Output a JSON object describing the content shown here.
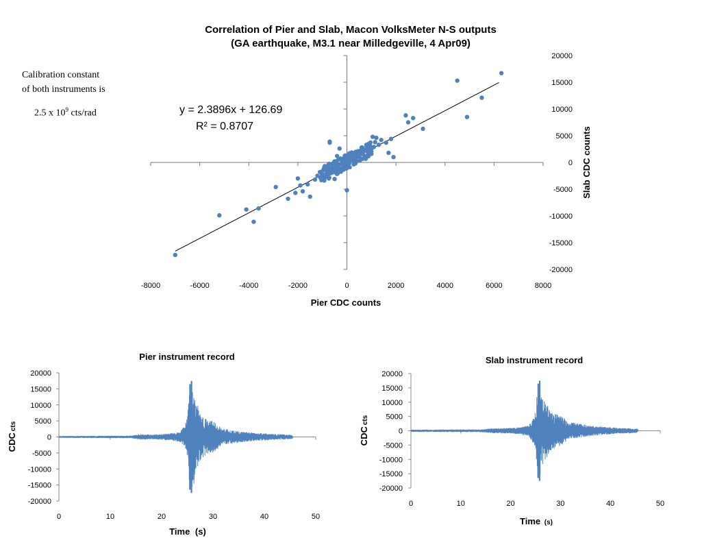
{
  "annotation": {
    "line1": "Calibration constant",
    "line2": "of both instruments is",
    "calib_prefix": "2.5 x 10",
    "calib_exp": "9",
    "calib_suffix": "cts/rad"
  },
  "chart_data": [
    {
      "type": "scatter",
      "title_line1": "Correlation of Pier and Slab, Macon VolksMeter N-S outputs",
      "title_line2": "(GA earthquake, M3.1 near Milledgeville, 4 Apr09)",
      "xlabel": "Pier CDC counts",
      "ylabel": "Slab CDC counts",
      "xlim": [
        -8000,
        8000
      ],
      "ylim": [
        -20000,
        20000
      ],
      "xticks": [
        -8000,
        -6000,
        -4000,
        -2000,
        0,
        2000,
        4000,
        6000,
        8000
      ],
      "yticks": [
        -20000,
        -15000,
        -10000,
        -5000,
        0,
        5000,
        10000,
        15000,
        20000
      ],
      "point_color": "#4f81bd",
      "trendline": {
        "equation": "y = 2.3896x + 126.69",
        "r_squared": "R² = 0.8707",
        "slope": 2.3896,
        "intercept": 126.69,
        "x_range": [
          -7000,
          6200
        ]
      },
      "points": [
        [
          -7000,
          -17300
        ],
        [
          -5200,
          -9900
        ],
        [
          -4100,
          -8800
        ],
        [
          -3800,
          -11100
        ],
        [
          -3600,
          -8600
        ],
        [
          -2900,
          -4600
        ],
        [
          -2400,
          -6800
        ],
        [
          -2100,
          -5700
        ],
        [
          -2000,
          -3000
        ],
        [
          -1900,
          -4300
        ],
        [
          -1800,
          -5400
        ],
        [
          -1600,
          -4100
        ],
        [
          -1500,
          -6400
        ],
        [
          -1300,
          -3200
        ],
        [
          -1200,
          -2500
        ],
        [
          -1100,
          -1800
        ],
        [
          -1000,
          -2200
        ],
        [
          -950,
          -1300
        ],
        [
          -900,
          -2700
        ],
        [
          -850,
          -900
        ],
        [
          -800,
          -1600
        ],
        [
          -750,
          -400
        ],
        [
          -700,
          3700
        ],
        [
          -700,
          3900
        ],
        [
          -650,
          -2000
        ],
        [
          -600,
          -1200
        ],
        [
          -550,
          -700
        ],
        [
          -500,
          -3100
        ],
        [
          -500,
          200
        ],
        [
          -450,
          -900
        ],
        [
          -400,
          1200
        ],
        [
          -400,
          -1500
        ],
        [
          -350,
          -400
        ],
        [
          -300,
          2600
        ],
        [
          -300,
          -1100
        ],
        [
          -250,
          -300
        ],
        [
          -200,
          300
        ],
        [
          -150,
          -600
        ],
        [
          -100,
          500
        ],
        [
          -50,
          -200
        ],
        [
          0,
          200
        ],
        [
          0,
          -5200
        ],
        [
          50,
          700
        ],
        [
          100,
          -100
        ],
        [
          150,
          400
        ],
        [
          200,
          900
        ],
        [
          250,
          1300
        ],
        [
          300,
          600
        ],
        [
          350,
          1800
        ],
        [
          400,
          1000
        ],
        [
          450,
          2100
        ],
        [
          500,
          1500
        ],
        [
          550,
          800
        ],
        [
          600,
          2800
        ],
        [
          650,
          1900
        ],
        [
          700,
          2400
        ],
        [
          750,
          1200
        ],
        [
          800,
          3100
        ],
        [
          850,
          2000
        ],
        [
          900,
          3500
        ],
        [
          950,
          2600
        ],
        [
          1000,
          1600
        ],
        [
          1050,
          4800
        ],
        [
          1100,
          2900
        ],
        [
          1150,
          3800
        ],
        [
          1200,
          4600
        ],
        [
          1300,
          3300
        ],
        [
          1400,
          4200
        ],
        [
          1600,
          3700
        ],
        [
          1700,
          1800
        ],
        [
          1800,
          4400
        ],
        [
          1900,
          1000
        ],
        [
          2400,
          8800
        ],
        [
          2500,
          7500
        ],
        [
          2700,
          8300
        ],
        [
          3100,
          6300
        ],
        [
          4500,
          15300
        ],
        [
          4900,
          8500
        ],
        [
          5500,
          12100
        ],
        [
          6300,
          16700
        ]
      ]
    },
    {
      "type": "line",
      "title": "Pier instrument record",
      "xlabel": "Time",
      "xlabel_unit": "(s)",
      "ylabel": "CDC",
      "ylabel_unit": "cts",
      "xlim": [
        0,
        50
      ],
      "ylim": [
        -20000,
        20000
      ],
      "xticks": [
        0,
        10,
        20,
        30,
        40,
        50
      ],
      "yticks": [
        -20000,
        -15000,
        -10000,
        -5000,
        0,
        5000,
        10000,
        15000,
        20000
      ],
      "line_color": "#4f81bd",
      "envelope": [
        [
          0,
          300
        ],
        [
          14,
          400
        ],
        [
          16,
          900
        ],
        [
          18,
          700
        ],
        [
          20,
          900
        ],
        [
          22,
          1200
        ],
        [
          23.5,
          1500
        ],
        [
          24.5,
          3500
        ],
        [
          25,
          6000
        ],
        [
          25.5,
          16500
        ],
        [
          25.8,
          -17500
        ],
        [
          26,
          15200
        ],
        [
          26.3,
          15000
        ],
        [
          26.6,
          -9800
        ],
        [
          27,
          10000
        ],
        [
          27.5,
          8000
        ],
        [
          28,
          6500
        ],
        [
          29,
          5200
        ],
        [
          30,
          5000
        ],
        [
          31,
          3500
        ],
        [
          32,
          2600
        ],
        [
          34,
          2000
        ],
        [
          36,
          1600
        ],
        [
          38,
          1300
        ],
        [
          40,
          1100
        ],
        [
          42,
          900
        ],
        [
          44,
          800
        ],
        [
          45.5,
          600
        ]
      ]
    },
    {
      "type": "line",
      "title": "Slab instrument record",
      "xlabel": "Time",
      "xlabel_unit": "(s)",
      "ylabel": "CDC",
      "ylabel_unit": "cts",
      "xlim": [
        0,
        50
      ],
      "ylim": [
        -20000,
        20000
      ],
      "xticks": [
        0,
        10,
        20,
        30,
        40,
        50
      ],
      "yticks": [
        -20000,
        -15000,
        -10000,
        -5000,
        0,
        5000,
        10000,
        15000,
        20000
      ],
      "line_color": "#4f81bd",
      "envelope": [
        [
          0,
          400
        ],
        [
          14,
          500
        ],
        [
          16,
          800
        ],
        [
          18,
          900
        ],
        [
          20,
          1000
        ],
        [
          22,
          1300
        ],
        [
          23.5,
          1800
        ],
        [
          24.5,
          4200
        ],
        [
          25,
          7000
        ],
        [
          25.5,
          16800
        ],
        [
          25.8,
          -17500
        ],
        [
          26,
          14500
        ],
        [
          26.3,
          13000
        ],
        [
          26.6,
          -10000
        ],
        [
          27,
          11000
        ],
        [
          27.5,
          9000
        ],
        [
          28,
          7000
        ],
        [
          29,
          6000
        ],
        [
          30,
          5500
        ],
        [
          31,
          4000
        ],
        [
          32,
          3000
        ],
        [
          34,
          2400
        ],
        [
          36,
          1800
        ],
        [
          38,
          1500
        ],
        [
          40,
          1200
        ],
        [
          42,
          1000
        ],
        [
          44,
          900
        ],
        [
          45.5,
          700
        ]
      ]
    }
  ]
}
